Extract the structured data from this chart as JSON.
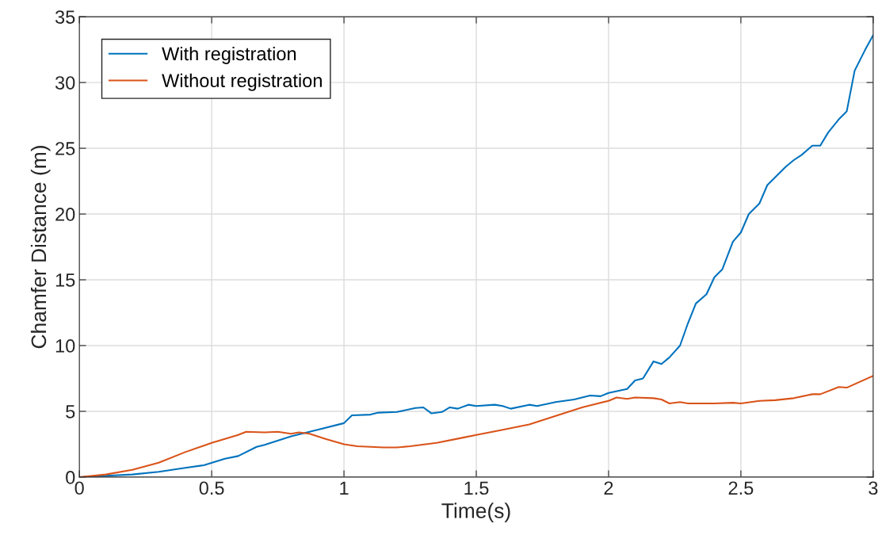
{
  "chart_data": {
    "type": "line",
    "xlabel": "Time(s)",
    "ylabel": "Chamfer Distance (m)",
    "xlim": [
      0,
      3
    ],
    "xticks": [
      0,
      0.5,
      1,
      1.5,
      2,
      2.5,
      3
    ],
    "ylim": [
      0,
      35
    ],
    "yticks": [
      0,
      5,
      10,
      15,
      20,
      25,
      30,
      35
    ],
    "grid": true,
    "legend": "top left",
    "marker": "none",
    "line_style": "solid",
    "series": [
      {
        "name": "With registration",
        "color": "#0072bd",
        "x": [
          0,
          0.1,
          0.2,
          0.3,
          0.4,
          0.47,
          0.55,
          0.6,
          0.67,
          0.7,
          0.8,
          0.9,
          1.0,
          1.03,
          1.1,
          1.13,
          1.2,
          1.27,
          1.3,
          1.33,
          1.37,
          1.4,
          1.43,
          1.47,
          1.5,
          1.57,
          1.6,
          1.63,
          1.7,
          1.73,
          1.8,
          1.87,
          1.93,
          1.97,
          2.0,
          2.07,
          2.1,
          2.13,
          2.17,
          2.2,
          2.23,
          2.27,
          2.3,
          2.33,
          2.37,
          2.4,
          2.43,
          2.47,
          2.5,
          2.53,
          2.57,
          2.6,
          2.63,
          2.67,
          2.7,
          2.73,
          2.77,
          2.8,
          2.83,
          2.87,
          2.9,
          2.93,
          2.97,
          3.0
        ],
        "values": [
          0,
          0.1,
          0.2,
          0.4,
          0.7,
          0.9,
          1.4,
          1.6,
          2.3,
          2.45,
          3.1,
          3.6,
          4.1,
          4.7,
          4.75,
          4.9,
          4.95,
          5.25,
          5.3,
          4.85,
          4.95,
          5.3,
          5.2,
          5.5,
          5.4,
          5.5,
          5.4,
          5.2,
          5.5,
          5.4,
          5.7,
          5.9,
          6.2,
          6.15,
          6.4,
          6.7,
          7.35,
          7.5,
          8.8,
          8.6,
          9.1,
          10.0,
          11.7,
          13.2,
          13.9,
          15.2,
          15.8,
          17.9,
          18.6,
          20.0,
          20.8,
          22.2,
          22.8,
          23.6,
          24.1,
          24.5,
          25.2,
          25.2,
          26.2,
          27.2,
          27.8,
          30.9,
          32.5,
          33.6
        ]
      },
      {
        "name": "Without registration",
        "color": "#d95319",
        "x": [
          0,
          0.1,
          0.2,
          0.3,
          0.4,
          0.5,
          0.55,
          0.6,
          0.63,
          0.7,
          0.75,
          0.8,
          0.83,
          0.87,
          0.93,
          1.0,
          1.05,
          1.15,
          1.2,
          1.25,
          1.35,
          1.45,
          1.5,
          1.6,
          1.7,
          1.8,
          1.9,
          2.0,
          2.03,
          2.07,
          2.1,
          2.17,
          2.2,
          2.23,
          2.27,
          2.3,
          2.4,
          2.47,
          2.5,
          2.57,
          2.63,
          2.7,
          2.77,
          2.8,
          2.87,
          2.9,
          3.0
        ],
        "values": [
          0,
          0.2,
          0.55,
          1.1,
          1.9,
          2.6,
          2.9,
          3.2,
          3.45,
          3.4,
          3.45,
          3.3,
          3.4,
          3.3,
          2.9,
          2.5,
          2.35,
          2.25,
          2.25,
          2.35,
          2.6,
          3.0,
          3.2,
          3.6,
          4.0,
          4.65,
          5.3,
          5.8,
          6.05,
          5.95,
          6.05,
          6.0,
          5.9,
          5.6,
          5.7,
          5.6,
          5.6,
          5.65,
          5.6,
          5.8,
          5.85,
          6.0,
          6.3,
          6.3,
          6.85,
          6.8,
          7.7
        ]
      }
    ]
  }
}
